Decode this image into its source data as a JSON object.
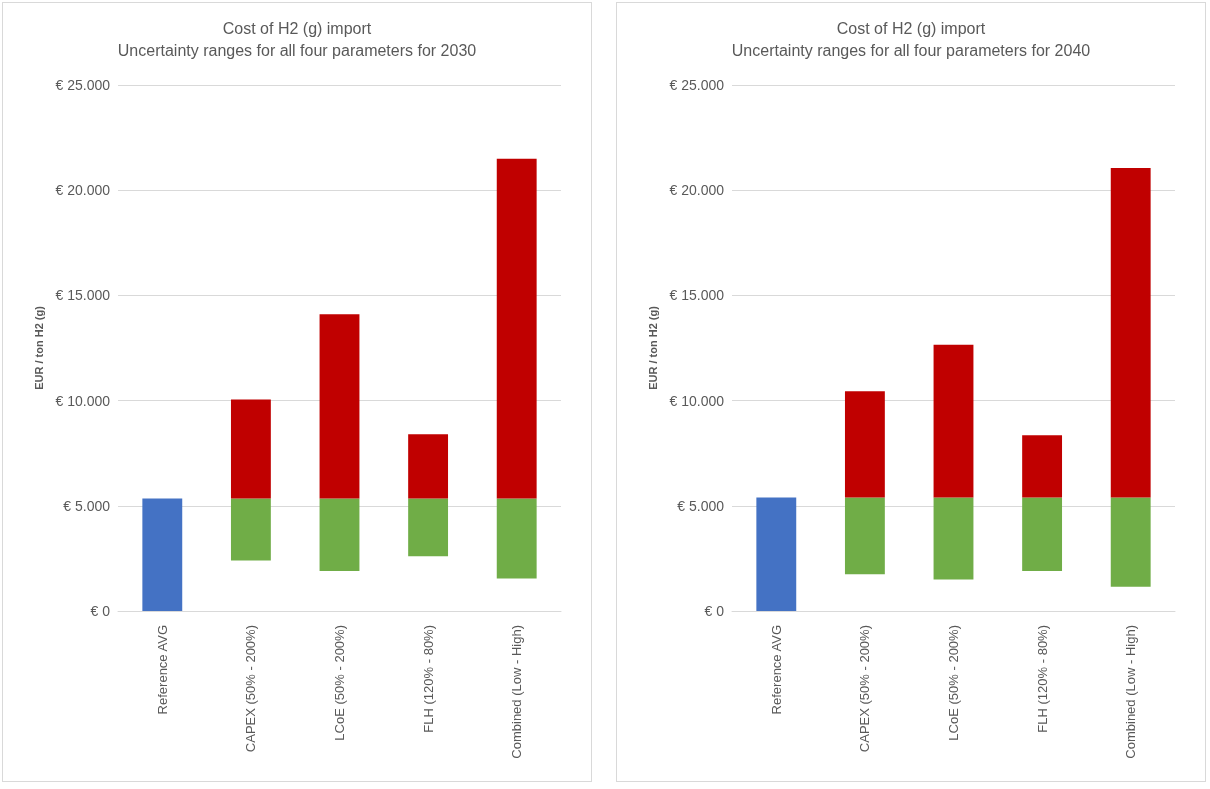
{
  "chart_data": [
    {
      "type": "bar",
      "title": "Cost of H2 (g) import",
      "subtitle": "Uncertainty ranges for all four parameters for 2030",
      "ylabel": "EUR / ton H2 (g)",
      "categories": [
        "Reference AVG",
        "CAPEX (50% - 200%)",
        "LCoE (50% - 200%)",
        "FLH (120% - 80%)",
        "Combined (Low - High)"
      ],
      "series": [
        {
          "color": "#4472c4",
          "values": [
            5350,
            null,
            null,
            null,
            null
          ],
          "base": [
            0,
            null,
            null,
            null,
            null
          ]
        },
        {
          "color": "#70ad47",
          "values": [
            null,
            2950,
            3450,
            2750,
            3800
          ],
          "base": [
            null,
            2400,
            1900,
            2600,
            1550
          ]
        },
        {
          "color": "#c00000",
          "values": [
            null,
            4700,
            8750,
            3050,
            16150
          ],
          "base": [
            null,
            5350,
            5350,
            5350,
            5350
          ]
        }
      ],
      "ylim": [
        0,
        25000
      ],
      "yticks": [
        {
          "value": 0,
          "label": "€ 0"
        },
        {
          "value": 5000,
          "label": "€ 5.000"
        },
        {
          "value": 10000,
          "label": "€ 10.000"
        },
        {
          "value": 15000,
          "label": "€ 15.000"
        },
        {
          "value": 20000,
          "label": "€ 20.000"
        },
        {
          "value": 25000,
          "label": "€ 25.000"
        }
      ],
      "grid": "y"
    },
    {
      "type": "bar",
      "title": "Cost of H2 (g) import",
      "subtitle": "Uncertainty ranges for all four parameters for 2040",
      "ylabel": "EUR / ton H2 (g)",
      "categories": [
        "Reference AVG",
        "CAPEX (50% - 200%)",
        "LCoE (50% - 200%)",
        "FLH (120% - 80%)",
        "Combined (Low - High)"
      ],
      "series": [
        {
          "color": "#4472c4",
          "values": [
            5400,
            null,
            null,
            null,
            null
          ],
          "base": [
            0,
            null,
            null,
            null,
            null
          ]
        },
        {
          "color": "#70ad47",
          "values": [
            null,
            3650,
            3900,
            3500,
            4250
          ],
          "base": [
            null,
            1750,
            1500,
            1900,
            1150
          ]
        },
        {
          "color": "#c00000",
          "values": [
            null,
            5050,
            7250,
            2950,
            15650
          ],
          "base": [
            null,
            5400,
            5400,
            5400,
            5400
          ]
        }
      ],
      "ylim": [
        0,
        25000
      ],
      "yticks": [
        {
          "value": 0,
          "label": "€ 0"
        },
        {
          "value": 5000,
          "label": "€ 5.000"
        },
        {
          "value": 10000,
          "label": "€ 10.000"
        },
        {
          "value": 15000,
          "label": "€ 15.000"
        },
        {
          "value": 20000,
          "label": "€ 20.000"
        },
        {
          "value": 25000,
          "label": "€ 25.000"
        }
      ],
      "grid": "y"
    }
  ]
}
